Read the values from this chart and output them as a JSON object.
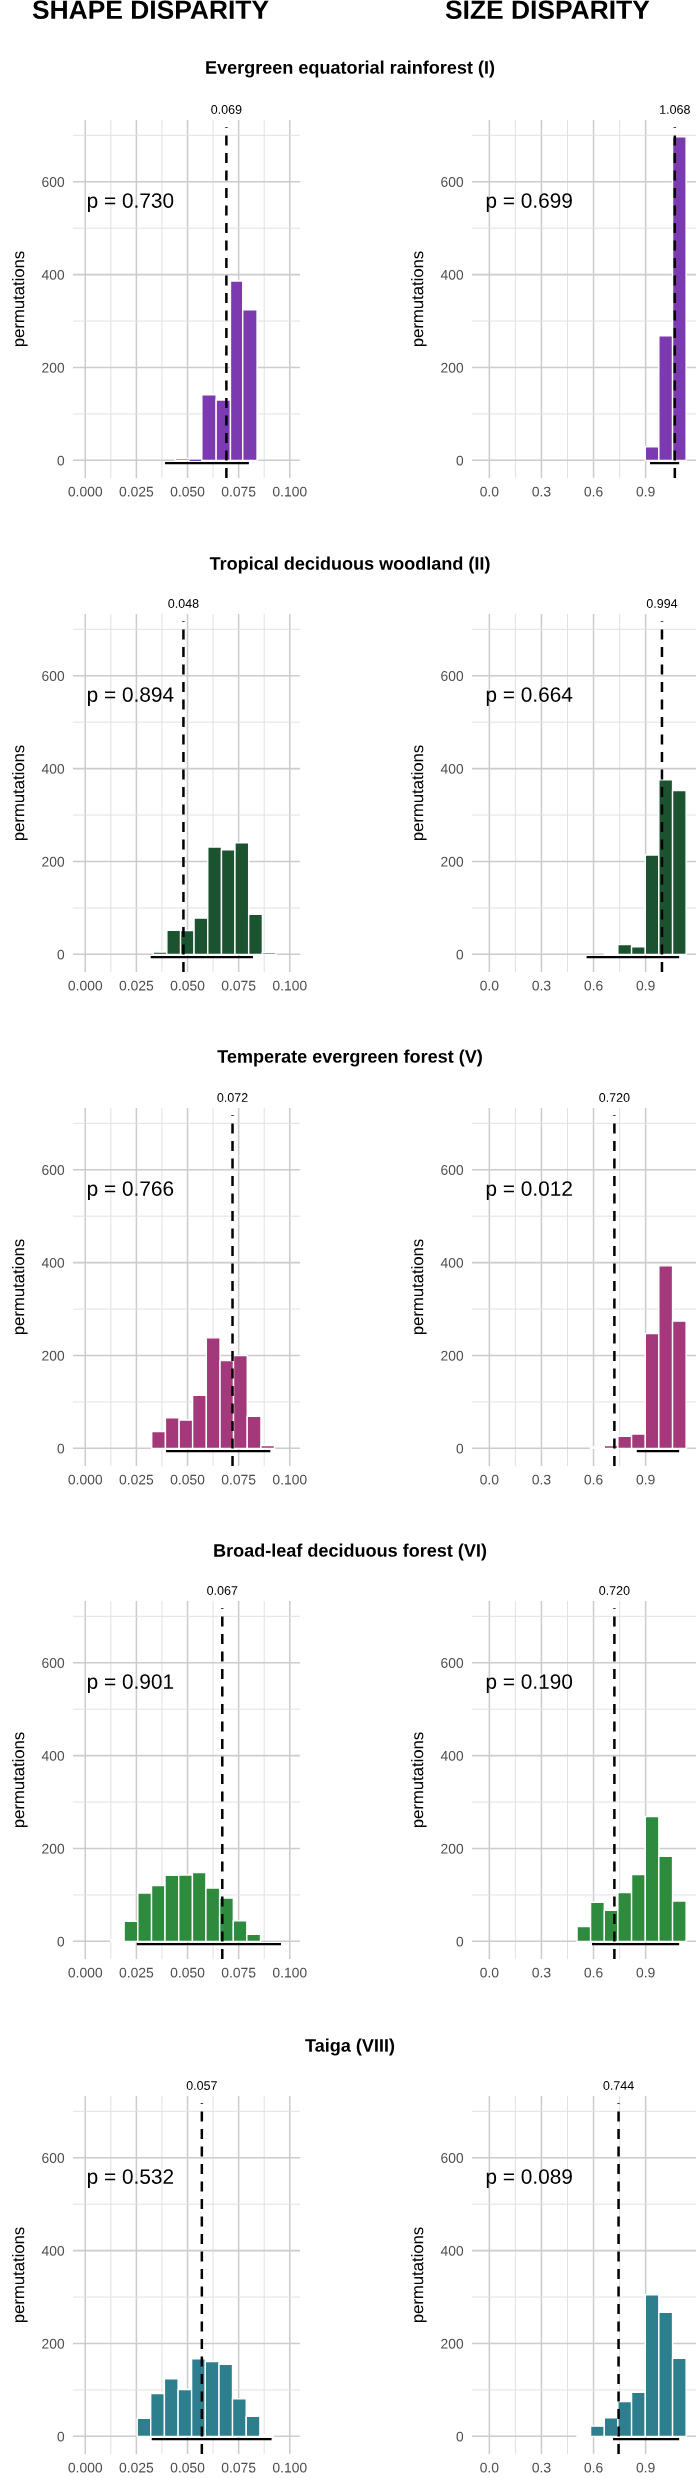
{
  "chart_data": [
    {
      "type": "histogram",
      "subtitle": "SHAPE DISPARITY",
      "title": "Evergreen equatorial rainforest (I)",
      "ylabel": "permutations",
      "bins": [
        0.044,
        0.051,
        0.057,
        0.064,
        0.071,
        0.077,
        0.084
      ],
      "values": [
        4,
        0,
        141,
        130,
        386,
        324
      ],
      "color": "#7b3aaf",
      "series": [
        {
          "type": "line",
          "x": [
            0.039,
            0.08
          ],
          "values": [
            -6,
            -6
          ],
          "color": "#000000"
        }
      ],
      "ref_lines": [
        {
          "axis": "x",
          "value": 0.069,
          "label": "0.069",
          "line_style": "dashed",
          "color": "#000000"
        }
      ],
      "annotations": [
        "p = 0.730"
      ],
      "xlim": [
        -0.006,
        0.105
      ],
      "xticks": [
        {
          "value": 0,
          "label": "0.000"
        },
        {
          "value": 0.025,
          "label": "0.025"
        },
        {
          "value": 0.05,
          "label": "0.050"
        },
        {
          "value": 0.075,
          "label": "0.075"
        },
        {
          "value": 0.1,
          "label": "0.100"
        }
      ],
      "ylim": [
        -38,
        733
      ],
      "yticks": [
        0,
        200,
        400,
        600
      ],
      "grid": true
    },
    {
      "type": "histogram",
      "subtitle": "SIZE DISPARITY",
      "ylabel": "permutations",
      "bins": [
        0.898,
        0.976,
        1.055,
        1.133
      ],
      "values": [
        29,
        268,
        697
      ],
      "color": "#7b3aaf",
      "series": [
        {
          "type": "line",
          "x": [
            0.925,
            1.093
          ],
          "values": [
            -6,
            -6
          ],
          "color": "#000000"
        }
      ],
      "ref_lines": [
        {
          "axis": "x",
          "value": 1.068,
          "label": "1.068",
          "line_style": "dashed",
          "color": "#000000"
        }
      ],
      "annotations": [
        "p = 0.699"
      ],
      "xlim": [
        -0.1,
        1.19
      ],
      "xticks": [
        {
          "value": 0,
          "label": "0.0"
        },
        {
          "value": 0.3,
          "label": "0.3"
        },
        {
          "value": 0.6,
          "label": "0.6"
        },
        {
          "value": 0.9,
          "label": "0.9"
        }
      ],
      "ylim": [
        -38,
        733
      ],
      "yticks": [
        0,
        200,
        400,
        600
      ],
      "grid": true
    },
    {
      "type": "histogram",
      "title": "Tropical deciduous woodland (II)",
      "ylabel": "permutations",
      "bins": [
        0.0332,
        0.0399,
        0.0466,
        0.0532,
        0.0599,
        0.0666,
        0.0732,
        0.0799,
        0.0866,
        0.0932
      ],
      "values": [
        5,
        52,
        51,
        78,
        231,
        225,
        240,
        86,
        4
      ],
      "color": "#1b5230",
      "series": [
        {
          "type": "line",
          "x": [
            0.032,
            0.082
          ],
          "values": [
            -6,
            -6
          ],
          "color": "#000000"
        }
      ],
      "ref_lines": [
        {
          "axis": "x",
          "value": 0.048,
          "label": "0.048",
          "line_style": "dashed",
          "color": "#000000"
        }
      ],
      "annotations": [
        "p = 0.894"
      ],
      "xlim": [
        -0.006,
        0.105
      ],
      "xticks": [
        {
          "value": 0,
          "label": "0.000"
        },
        {
          "value": 0.025,
          "label": "0.025"
        },
        {
          "value": 0.05,
          "label": "0.050"
        },
        {
          "value": 0.075,
          "label": "0.075"
        },
        {
          "value": 0.1,
          "label": "0.100"
        }
      ],
      "ylim": [
        -38,
        733
      ],
      "yticks": [
        0,
        200,
        400,
        600
      ],
      "grid": true
    },
    {
      "type": "histogram",
      "ylabel": "permutations",
      "bins": [
        0.662,
        0.74,
        0.819,
        0.898,
        0.976,
        1.055,
        1.133
      ],
      "values": [
        2,
        21,
        16,
        214,
        376,
        353
      ],
      "color": "#1b5230",
      "series": [
        {
          "type": "line",
          "x": [
            0.56,
            1.093
          ],
          "values": [
            -6,
            -6
          ],
          "color": "#000000"
        }
      ],
      "ref_lines": [
        {
          "axis": "x",
          "value": 0.994,
          "label": "0.994",
          "line_style": "dashed",
          "color": "#000000"
        }
      ],
      "annotations": [
        "p = 0.664"
      ],
      "xlim": [
        -0.1,
        1.19
      ],
      "xticks": [
        {
          "value": 0,
          "label": "0.0"
        },
        {
          "value": 0.3,
          "label": "0.3"
        },
        {
          "value": 0.6,
          "label": "0.6"
        },
        {
          "value": 0.9,
          "label": "0.9"
        }
      ],
      "ylim": [
        -38,
        733
      ],
      "yticks": [
        0,
        200,
        400,
        600
      ],
      "grid": true
    },
    {
      "type": "histogram",
      "title": "Temperate evergreen forest (V)",
      "ylabel": "permutations",
      "bins": [
        0.0325,
        0.0392,
        0.0459,
        0.0525,
        0.0592,
        0.0659,
        0.0725,
        0.0792,
        0.0859,
        0.0925
      ],
      "values": [
        36,
        66,
        61,
        114,
        238,
        189,
        200,
        69,
        6
      ],
      "color": "#a3387a",
      "series": [
        {
          "type": "line",
          "x": [
            0.0395,
            0.0905
          ],
          "values": [
            -6,
            -6
          ],
          "color": "#000000"
        }
      ],
      "ref_lines": [
        {
          "axis": "x",
          "value": 0.072,
          "label": "0.072",
          "line_style": "dashed",
          "color": "#000000"
        }
      ],
      "annotations": [
        "p = 0.766"
      ],
      "xlim": [
        -0.006,
        0.105
      ],
      "xticks": [
        {
          "value": 0,
          "label": "0.000"
        },
        {
          "value": 0.025,
          "label": "0.025"
        },
        {
          "value": 0.05,
          "label": "0.050"
        },
        {
          "value": 0.075,
          "label": "0.075"
        },
        {
          "value": 0.1,
          "label": "0.100"
        }
      ],
      "ylim": [
        -38,
        733
      ],
      "yticks": [
        0,
        200,
        400,
        600
      ],
      "grid": true
    },
    {
      "type": "histogram",
      "ylabel": "permutations",
      "bins": [
        0.583,
        0.662,
        0.74,
        0.819,
        0.898,
        0.976,
        1.055,
        1.133
      ],
      "values": [
        3,
        6,
        26,
        31,
        247,
        393,
        274
      ],
      "color": "#a3387a",
      "series": [
        {
          "type": "line",
          "x": [
            0.849,
            1.093
          ],
          "values": [
            -6,
            -6
          ],
          "color": "#000000"
        }
      ],
      "ref_lines": [
        {
          "axis": "x",
          "value": 0.72,
          "label": "0.720",
          "line_style": "dashed",
          "color": "#000000"
        }
      ],
      "annotations": [
        "p = 0.012"
      ],
      "xlim": [
        -0.1,
        1.19
      ],
      "xticks": [
        {
          "value": 0,
          "label": "0.0"
        },
        {
          "value": 0.3,
          "label": "0.3"
        },
        {
          "value": 0.6,
          "label": "0.6"
        },
        {
          "value": 0.9,
          "label": "0.9"
        }
      ],
      "ylim": [
        -38,
        733
      ],
      "yticks": [
        0,
        200,
        400,
        600
      ],
      "grid": true
    },
    {
      "type": "histogram",
      "title": "Broad-leaf deciduous forest (VI)",
      "ylabel": "permutations",
      "bins": [
        0.0124,
        0.019,
        0.0257,
        0.0324,
        0.039,
        0.0457,
        0.0524,
        0.059,
        0.0657,
        0.0724,
        0.079,
        0.0857
      ],
      "values": [
        3,
        43,
        104,
        120,
        142,
        143,
        148,
        115,
        93,
        44,
        15
      ],
      "color": "#2e8b3e",
      "series": [
        {
          "type": "line",
          "x": [
            0.0252,
            0.0957
          ],
          "values": [
            -6,
            -6
          ],
          "color": "#000000"
        }
      ],
      "ref_lines": [
        {
          "axis": "x",
          "value": 0.067,
          "label": "0.067",
          "line_style": "dashed",
          "color": "#000000"
        }
      ],
      "annotations": [
        "p = 0.901"
      ],
      "xlim": [
        -0.006,
        0.105
      ],
      "xticks": [
        {
          "value": 0,
          "label": "0.000"
        },
        {
          "value": 0.025,
          "label": "0.025"
        },
        {
          "value": 0.05,
          "label": "0.050"
        },
        {
          "value": 0.075,
          "label": "0.075"
        },
        {
          "value": 0.1,
          "label": "0.100"
        }
      ],
      "ylim": [
        -38,
        733
      ],
      "yticks": [
        0,
        200,
        400,
        600
      ],
      "grid": true
    },
    {
      "type": "histogram",
      "ylabel": "permutations",
      "bins": [
        0.505,
        0.583,
        0.662,
        0.74,
        0.819,
        0.898,
        0.976,
        1.055,
        1.133
      ],
      "values": [
        32,
        84,
        67,
        105,
        144,
        269,
        183,
        87
      ],
      "color": "#2e8b3e",
      "series": [
        {
          "type": "line",
          "x": [
            0.591,
            1.093
          ],
          "values": [
            -6,
            -6
          ],
          "color": "#000000"
        }
      ],
      "ref_lines": [
        {
          "axis": "x",
          "value": 0.72,
          "label": "0.720",
          "line_style": "dashed",
          "color": "#000000"
        }
      ],
      "annotations": [
        "p = 0.190"
      ],
      "xlim": [
        -0.1,
        1.19
      ],
      "xticks": [
        {
          "value": 0,
          "label": "0.0"
        },
        {
          "value": 0.3,
          "label": "0.3"
        },
        {
          "value": 0.6,
          "label": "0.6"
        },
        {
          "value": 0.9,
          "label": "0.9"
        }
      ],
      "ylim": [
        -38,
        733
      ],
      "yticks": [
        0,
        200,
        400,
        600
      ],
      "grid": true
    },
    {
      "type": "histogram",
      "title": "Taiga (VIII)",
      "ylabel": "permutations",
      "bins": [
        0.0254,
        0.032,
        0.0387,
        0.0454,
        0.052,
        0.0587,
        0.0654,
        0.072,
        0.0787,
        0.0854,
        0.092
      ],
      "values": [
        39,
        92,
        124,
        101,
        167,
        161,
        155,
        81,
        43,
        3
      ],
      "color": "#2e7f8e",
      "series": [
        {
          "type": "line",
          "x": [
            0.0325,
            0.0911
          ],
          "values": [
            -6,
            -6
          ],
          "color": "#000000"
        }
      ],
      "ref_lines": [
        {
          "axis": "x",
          "value": 0.057,
          "label": "0.057",
          "line_style": "dashed",
          "color": "#000000"
        }
      ],
      "annotations": [
        "p = 0.532"
      ],
      "xlim": [
        -0.006,
        0.105
      ],
      "xticks": [
        {
          "value": 0,
          "label": "0.000"
        },
        {
          "value": 0.025,
          "label": "0.025"
        },
        {
          "value": 0.05,
          "label": "0.050"
        },
        {
          "value": 0.075,
          "label": "0.075"
        },
        {
          "value": 0.1,
          "label": "0.100"
        }
      ],
      "ylim": [
        -38,
        733
      ],
      "yticks": [
        0,
        200,
        400,
        600
      ],
      "grid": true
    },
    {
      "type": "histogram",
      "ylabel": "permutations",
      "bins": [
        0.505,
        0.583,
        0.662,
        0.74,
        0.819,
        0.898,
        0.976,
        1.055,
        1.133
      ],
      "values": [
        2,
        22,
        40,
        75,
        95,
        305,
        267,
        168
      ],
      "color": "#2e7f8e",
      "series": [
        {
          "type": "line",
          "x": [
            0.712,
            1.093
          ],
          "values": [
            -6,
            -6
          ],
          "color": "#000000"
        }
      ],
      "ref_lines": [
        {
          "axis": "x",
          "value": 0.744,
          "label": "0.744",
          "line_style": "dashed",
          "color": "#000000"
        }
      ],
      "annotations": [
        "p = 0.089"
      ],
      "xlim": [
        -0.1,
        1.19
      ],
      "xticks": [
        {
          "value": 0,
          "label": "0.0"
        },
        {
          "value": 0.3,
          "label": "0.3"
        },
        {
          "value": 0.6,
          "label": "0.6"
        },
        {
          "value": 0.9,
          "label": "0.9"
        }
      ],
      "ylim": [
        -38,
        733
      ],
      "yticks": [
        0,
        200,
        400,
        600
      ],
      "grid": true
    }
  ]
}
